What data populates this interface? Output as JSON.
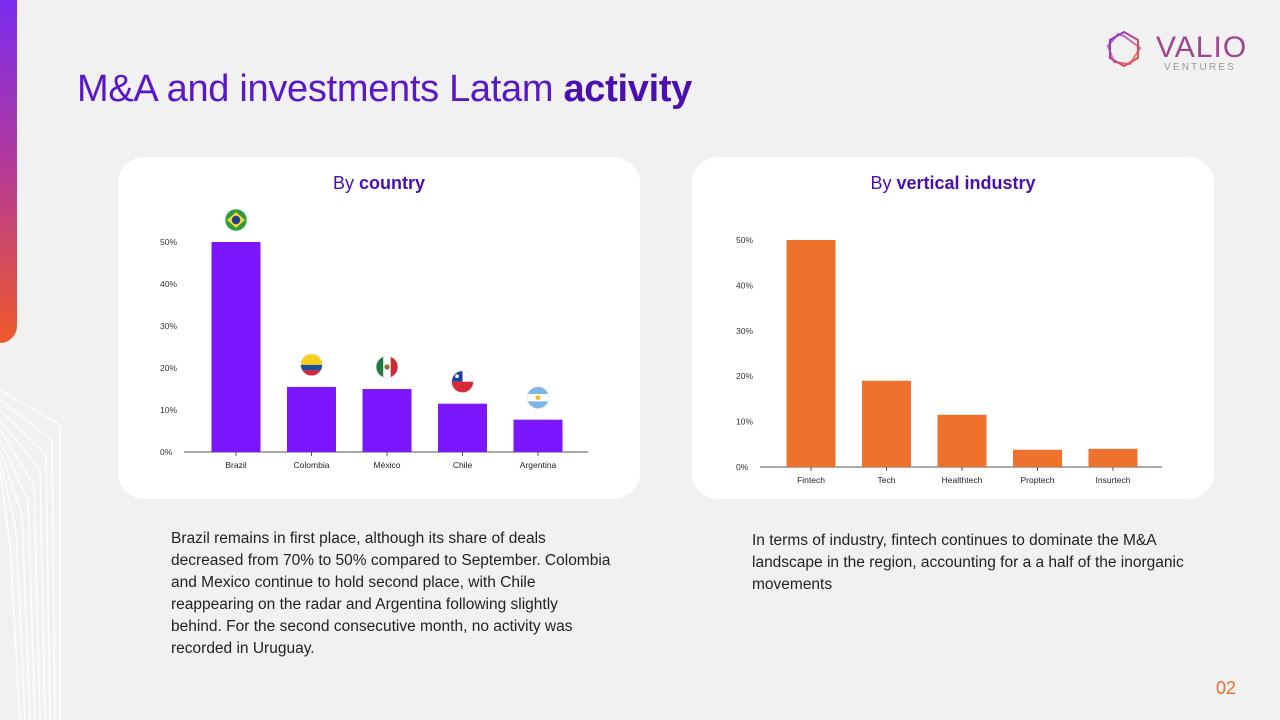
{
  "title": {
    "regular": "M&A and investments Latam ",
    "bold": "activity"
  },
  "logo": {
    "name": "VALIO",
    "sub": "VENTURES"
  },
  "charts": {
    "country": {
      "title_prefix": "By ",
      "title_bold": "country"
    },
    "industry": {
      "title_prefix": "By ",
      "title_bold": "vertical industry"
    }
  },
  "chart_data": [
    {
      "type": "bar",
      "title": "By country",
      "categories": [
        "Brazil",
        "Colombia",
        "México",
        "Chile",
        "Argentina"
      ],
      "values": [
        50,
        15.5,
        15,
        11.5,
        7.7
      ],
      "unit": "%",
      "yticks": [
        "0%",
        "10%",
        "20%",
        "30%",
        "40%",
        "50%"
      ],
      "ylim": [
        0,
        50
      ],
      "grid": false,
      "color": "#7b16ff",
      "flags": [
        "brazil-flag-icon",
        "colombia-flag-icon",
        "mexico-flag-icon",
        "chile-flag-icon",
        "argentina-flag-icon"
      ]
    },
    {
      "type": "bar",
      "title": "By vertical industry",
      "categories": [
        "Fintech",
        "Tech",
        "Healthtech",
        "Proptech",
        "Insurtech"
      ],
      "values": [
        50,
        19,
        11.5,
        3.8,
        4
      ],
      "unit": "%",
      "yticks": [
        "0%",
        "10%",
        "20%",
        "30%",
        "40%",
        "50%"
      ],
      "ylim": [
        0,
        50
      ],
      "grid": false,
      "color": "#ef722c"
    }
  ],
  "text": {
    "left": "Brazil remains in first place, although its share of deals decreased from 70% to 50% compared to September. Colombia and Mexico continue to hold second place, with Chile reappearing on the radar and Argentina following slightly behind. For the second consecutive month, no activity was recorded in Uruguay.",
    "right": "In terms of industry, fintech continues to dominate the M&A landscape in the region, accounting for a a half of the inorganic movements"
  },
  "page_number": "02",
  "colors": {
    "brand_purple": "#4b0fb0",
    "brand_orange": "#ef6b2c"
  }
}
